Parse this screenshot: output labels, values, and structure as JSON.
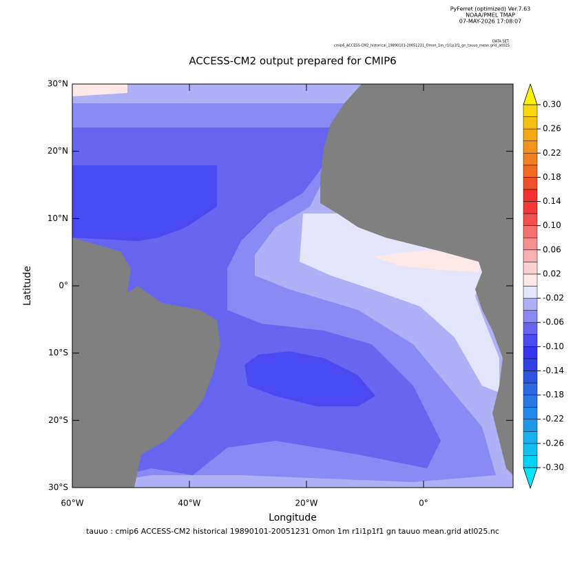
{
  "header": {
    "software": "PyFerret (optimized) Ver.7.63",
    "organization": "NOAA/PMEL TMAP",
    "timestamp": "07-MAY-2026 17:08:07",
    "dataset_label": "DATA SET:",
    "dataset": "cmip6_ACCESS-CM2_historical_19890101-20051231_Omon_1m_r1i1p1f1_gn_tauuo_mean.grid_atl025"
  },
  "chart_data": {
    "type": "map",
    "title": "ACCESS-CM2 output prepared for CMIP6",
    "x_label": "Longitude",
    "y_label": "Latitude",
    "caption": "tauuo : cmip6 ACCESS-CM2 historical 19890101-20051231 Omon 1m r1i1p1f1 gn tauuo mean.grid atl025.nc",
    "xlim": [
      -60,
      15.3
    ],
    "ylim": [
      -30,
      30
    ],
    "xticks": [
      {
        "value": -60,
        "label": "60°W"
      },
      {
        "value": -40,
        "label": "40°W"
      },
      {
        "value": -20,
        "label": "20°W"
      },
      {
        "value": 0,
        "label": "0°"
      }
    ],
    "yticks": [
      {
        "value": -30,
        "label": "30°S"
      },
      {
        "value": -20,
        "label": "20°S"
      },
      {
        "value": -10,
        "label": "10°S"
      },
      {
        "value": 0,
        "label": "0°"
      },
      {
        "value": 10,
        "label": "10°N"
      },
      {
        "value": 20,
        "label": "20°N"
      },
      {
        "value": 30,
        "label": "30°N"
      }
    ],
    "land_color": "#808080",
    "colorbar": {
      "bounds": [
        -0.3,
        -0.28,
        -0.26,
        -0.24,
        -0.22,
        -0.2,
        -0.18,
        -0.16,
        -0.14,
        -0.12,
        -0.1,
        -0.08,
        -0.06,
        -0.04,
        -0.02,
        0,
        0.02,
        0.04,
        0.06,
        0.08,
        0.1,
        0.12,
        0.14,
        0.16,
        0.18,
        0.2,
        0.22,
        0.24,
        0.26,
        0.28,
        0.3
      ],
      "colors": [
        "#00e5ff",
        "#00d4f5",
        "#10c0f0",
        "#1ab0ee",
        "#2098ea",
        "#2488e8",
        "#2a78e6",
        "#2d68e4",
        "#2e55e2",
        "#3040e6",
        "#3535ee",
        "#4a4af2",
        "#6666f0",
        "#8a8af4",
        "#b0b0f6",
        "#e4e4fa",
        "#fde8e8",
        "#fbd0d0",
        "#f8b0b0",
        "#f59090",
        "#f57070",
        "#f45050",
        "#f43838",
        "#f43030",
        "#f05028",
        "#f06a20",
        "#f08020",
        "#f29418",
        "#f4a814",
        "#f6c010",
        "#f8d80c",
        "#fff000"
      ],
      "ticks": [
        {
          "value": 0.3,
          "label": "0.30"
        },
        {
          "value": 0.26,
          "label": "0.26"
        },
        {
          "value": 0.22,
          "label": "0.22"
        },
        {
          "value": 0.18,
          "label": "0.18"
        },
        {
          "value": 0.14,
          "label": "0.14"
        },
        {
          "value": 0.1,
          "label": "0.10"
        },
        {
          "value": 0.06,
          "label": "0.06"
        },
        {
          "value": 0.02,
          "label": "0.02"
        },
        {
          "value": -0.02,
          "label": "-0.02"
        },
        {
          "value": -0.06,
          "label": "-0.06"
        },
        {
          "value": -0.1,
          "label": "-0.10"
        },
        {
          "value": -0.14,
          "label": "-0.14"
        },
        {
          "value": -0.18,
          "label": "-0.18"
        },
        {
          "value": -0.22,
          "label": "-0.22"
        },
        {
          "value": -0.26,
          "label": "-0.26"
        },
        {
          "value": -0.3,
          "label": "-0.30"
        }
      ]
    }
  }
}
